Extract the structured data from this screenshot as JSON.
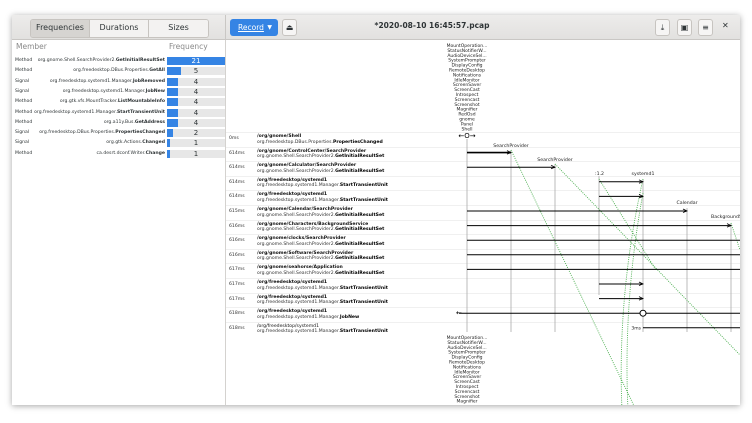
{
  "header": {
    "tabs": [
      "Frequencies",
      "Durations",
      "Sizes"
    ],
    "active_tab": 0,
    "record_label": "Record",
    "title": "*2020-08-10 16:45:57.pcap",
    "icons": [
      "open-icon",
      "download-icon",
      "save-icon",
      "menu-icon",
      "close-icon"
    ]
  },
  "stats": {
    "col_member": "Member",
    "col_frequency": "Frequency",
    "max": 21,
    "rows": [
      {
        "type": "Method",
        "iface": "org.gnome.Shell.SearchProvider2.",
        "name": "GetInitialResultSet",
        "value": 21,
        "selected": true
      },
      {
        "type": "Method",
        "iface": "org.freedesktop.DBus.Properties.",
        "name": "GetAll",
        "value": 5
      },
      {
        "type": "Signal",
        "iface": "org.freedesktop.systemd1.Manager.",
        "name": "JobRemoved",
        "value": 4
      },
      {
        "type": "Signal",
        "iface": "org.freedesktop.systemd1.Manager.",
        "name": "JobNew",
        "value": 4
      },
      {
        "type": "Method",
        "iface": "org.gtk.vfs.MountTracker.",
        "name": "ListMountableInfo",
        "value": 4
      },
      {
        "type": "Method",
        "iface": "org.freedesktop.systemd1.Manager.",
        "name": "StartTransientUnit",
        "value": 4
      },
      {
        "type": "Method",
        "iface": "org.a11y.Bus.",
        "name": "GetAddress",
        "value": 4
      },
      {
        "type": "Signal",
        "iface": "org.freedesktop.DBus.Properties.",
        "name": "PropertiesChanged",
        "value": 2
      },
      {
        "type": "Signal",
        "iface": "org.gtk.Actions.",
        "name": "Changed",
        "value": 1
      },
      {
        "type": "Method",
        "iface": "ca.desrt.dconf.Writer.",
        "name": "Change",
        "value": 1
      }
    ]
  },
  "messages": [
    {
      "time": "0ms",
      "path": "/org/gnome/Shell",
      "iface": "org.freedesktop.DBus.Properties.",
      "member": "PropertiesChanged"
    },
    {
      "time": "614ms",
      "path": "/org/gnome/ControlCenter/SearchProvider",
      "iface": "org.gnome.Shell.SearchProvider2.",
      "member": "GetInitialResultSet"
    },
    {
      "time": "614ms",
      "path": "/org/gnome/Calculator/SearchProvider",
      "iface": "org.gnome.Shell.SearchProvider2.",
      "member": "GetInitialResultSet"
    },
    {
      "time": "614ms",
      "path": "/org/freedesktop/systemd1",
      "iface": "org.freedesktop.systemd1.Manager.",
      "member": "StartTransientUnit"
    },
    {
      "time": "614ms",
      "path": "/org/freedesktop/systemd1",
      "iface": "org.freedesktop.systemd1.Manager.",
      "member": "StartTransientUnit"
    },
    {
      "time": "615ms",
      "path": "/org/gnome/Calendar/SearchProvider",
      "iface": "org.gnome.Shell.SearchProvider2.",
      "member": "GetInitialResultSet"
    },
    {
      "time": "616ms",
      "path": "/org/gnome/Characters/BackgroundService",
      "iface": "org.gnome.Shell.SearchProvider2.",
      "member": "GetInitialResultSet"
    },
    {
      "time": "616ms",
      "path": "/org/gnome/clocks/SearchProvider",
      "iface": "org.gnome.Shell.SearchProvider2.",
      "member": "GetInitialResultSet"
    },
    {
      "time": "616ms",
      "path": "/org/gnome/Software/SearchProvider",
      "iface": "org.gnome.Shell.SearchProvider2.",
      "member": "GetInitialResultSet"
    },
    {
      "time": "617ms",
      "path": "/org/gnome/seahorse/Application",
      "iface": "org.gnome.Shell.SearchProvider2.",
      "member": "GetInitialResultSet"
    },
    {
      "time": "617ms",
      "path": "/org/freedesktop/systemd1",
      "iface": "org.freedesktop.systemd1.Manager.",
      "member": "StartTransientUnit"
    },
    {
      "time": "617ms",
      "path": "/org/freedesktop/systemd1",
      "iface": "org.freedesktop.systemd1.Manager.",
      "member": "StartTransientUnit"
    },
    {
      "time": "618ms",
      "path": "/org/freedesktop/systemd1",
      "iface": "org.freedesktop.systemd1.Manager.",
      "member": "JobNew"
    },
    {
      "time": "618ms",
      "path": "/org/freedesktop/systemd1",
      "iface": "org.freedesktop.systemd1.Manager.",
      "member": "StartTransientUnit"
    }
  ],
  "diagram": {
    "shell_names": [
      "MountOperation...",
      "StatusNotifierW...",
      "AudioDeviceSel...",
      "SystemPrompter",
      "DisplayConfig",
      "RemoteDesktop",
      "Notifications",
      "IdleMonitor",
      "ScreenSaver",
      "ScreenCast",
      "Introspect",
      "Screencast",
      "Screenshot",
      "Magnifier",
      "RedOsd",
      "gnome",
      "Panel",
      "Shell"
    ],
    "shell_names_bottom": [
      "MountOperation...",
      "StatusNotifierW...",
      "AudioDeviceSel...",
      "SystemPrompter",
      "DisplayConfig",
      "RemoteDesktop",
      "Notifications",
      "IdleMonitor",
      "ScreenSaver",
      "ScreenCast",
      "Introspect",
      "Screencast",
      "Screenshot",
      "Magnifier"
    ],
    "lanes": [
      "Shell",
      "SearchProvider",
      "SearchProvider",
      ":1.2",
      "systemd1",
      "Calendar",
      "BackgroundServ..."
    ],
    "arrows": [
      {
        "row": 1,
        "from": 0,
        "to": 1
      },
      {
        "row": 2,
        "from": 0,
        "to": 2
      },
      {
        "row": 3,
        "from": 3,
        "to": 4
      },
      {
        "row": 4,
        "from": 3,
        "to": 4
      },
      {
        "row": 5,
        "from": 0,
        "to": 5
      },
      {
        "row": 6,
        "from": 0,
        "to": 6
      },
      {
        "row": 7,
        "from": 0,
        "to": "edge"
      },
      {
        "row": 8,
        "from": 0,
        "to": "edge"
      },
      {
        "row": 9,
        "from": 0,
        "to": "edge"
      },
      {
        "row": 10,
        "from": 3,
        "to": 4
      },
      {
        "row": 11,
        "from": 3,
        "to": 4
      },
      {
        "row": 12,
        "from": "edge",
        "to": "left",
        "signal_from": 4
      },
      {
        "row": 13,
        "from": 4,
        "to": "edge"
      }
    ],
    "duration_label": "3ms",
    "return_color": "#4caf50"
  }
}
